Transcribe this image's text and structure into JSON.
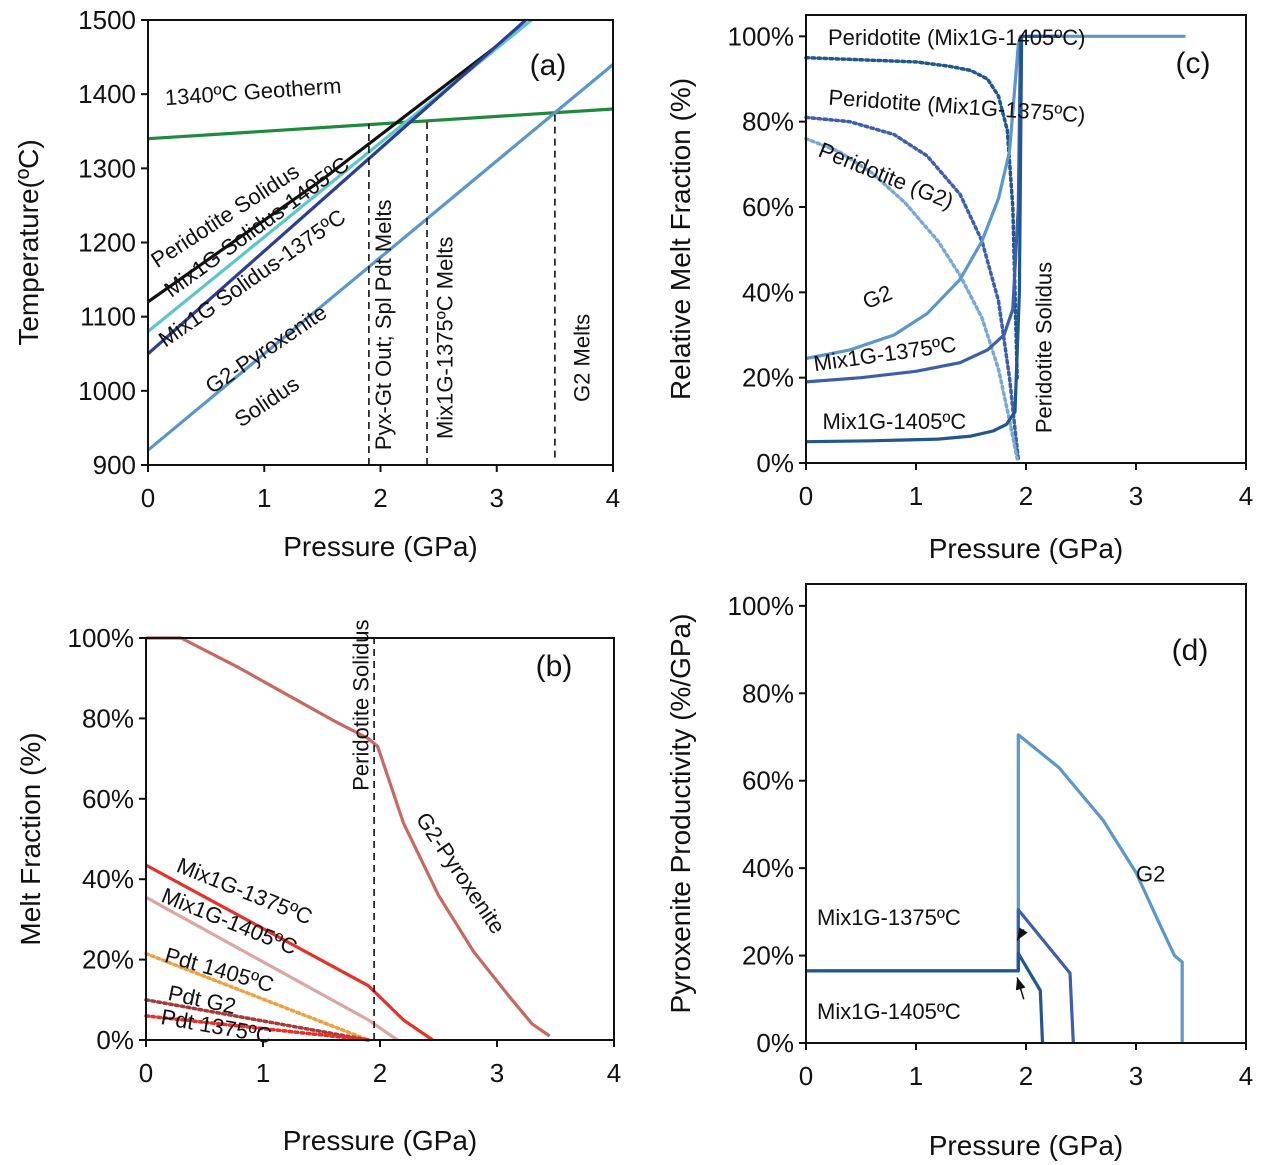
{
  "colors": {
    "black": "#111111",
    "green": "#1e8a3c",
    "cyan": "#5cc6c8",
    "navy": "#2d3e94",
    "light_blue": "#5b97cc",
    "dark_blue": "#20578f",
    "mid_blue": "#3b5fae",
    "dot_blue": "#7aa8d6",
    "brown_red": "#c8685e",
    "red": "#e8302a",
    "pink": "#dca6a2",
    "orange": "#eda23f",
    "dark_red": "#a83a35"
  },
  "chart_data": [
    {
      "id": "a",
      "type": "line",
      "panel_label": "(a)",
      "xlabel": "Pressure (GPa)",
      "ylabel": "Temperature(ºC)",
      "xlim": [
        0,
        4
      ],
      "ylim": [
        900,
        1500
      ],
      "xticks": [
        "0",
        "1",
        "2",
        "3",
        "4"
      ],
      "yticks": [
        "900",
        "1000",
        "1100",
        "1200",
        "1300",
        "1400",
        "1500"
      ],
      "tick_values_x": [
        0,
        1,
        2,
        3,
        4
      ],
      "tick_values_y": [
        900,
        1000,
        1100,
        1200,
        1300,
        1400,
        1500
      ],
      "series": [
        {
          "key": "geotherm",
          "color_key": "green",
          "dash": "solid",
          "x": [
            0,
            4
          ],
          "y": [
            1340,
            1380
          ]
        },
        {
          "key": "pdt_solidus",
          "color_key": "black",
          "dash": "solid",
          "x": [
            0,
            0.5,
            1,
            1.5,
            2,
            2.5,
            3,
            3.2
          ],
          "y": [
            1120,
            1175,
            1230,
            1285,
            1345,
            1405,
            1465,
            1490
          ]
        },
        {
          "key": "mix1405_solidus",
          "color_key": "cyan",
          "dash": "solid",
          "x": [
            0,
            3.3
          ],
          "y": [
            1080,
            1500
          ]
        },
        {
          "key": "mix1375_solidus",
          "color_key": "navy",
          "dash": "solid",
          "x": [
            0,
            3.25
          ],
          "y": [
            1050,
            1500
          ]
        },
        {
          "key": "g2_solidus",
          "color_key": "light_blue",
          "dash": "solid",
          "x": [
            0,
            4
          ],
          "y": [
            920,
            1440
          ]
        },
        {
          "key": "v1",
          "color_key": "black",
          "dash": "dashed",
          "x": [
            1.9,
            1.9
          ],
          "y": [
            900,
            1360
          ]
        },
        {
          "key": "v2",
          "color_key": "black",
          "dash": "dashed",
          "x": [
            2.4,
            2.4
          ],
          "y": [
            900,
            1365
          ]
        },
        {
          "key": "v3",
          "color_key": "black",
          "dash": "dashed",
          "x": [
            3.5,
            3.5
          ],
          "y": [
            910,
            1375
          ]
        }
      ],
      "annotations": [
        {
          "text": "1340ºC Geotherm",
          "x": 0.15,
          "y": 1385,
          "rot": -4
        },
        {
          "text": "Peridotite Solidus",
          "x": 0.08,
          "y": 1165,
          "rot": -33
        },
        {
          "text": "Mix1G Solidus-1405ºC",
          "x": 0.2,
          "y": 1125,
          "rot": -36
        },
        {
          "text": "Mix1G Solidus-1375ºC",
          "x": 0.15,
          "y": 1058,
          "rot": -35
        },
        {
          "text": "G2-Pyroxenite",
          "x": 0.55,
          "y": 995,
          "rot": -34
        },
        {
          "text": "Solidus",
          "x": 0.8,
          "y": 950,
          "rot": -34
        },
        {
          "text": "Pyx-Gt Out; Spl Pdt Melts",
          "x": 2.09,
          "y": 920,
          "rot": -90
        },
        {
          "text": "Mix1G-1375ºC Melts",
          "x": 2.62,
          "y": 935,
          "rot": -90
        },
        {
          "text": "G2 Melts",
          "x": 3.8,
          "y": 985,
          "rot": -90
        }
      ]
    },
    {
      "id": "b",
      "type": "line",
      "panel_label": "(b)",
      "xlabel": "Pressure (GPa)",
      "ylabel": "Melt Fraction (%)",
      "xlim": [
        0,
        4
      ],
      "ylim": [
        0,
        100
      ],
      "xticks": [
        "0",
        "1",
        "2",
        "3",
        "4"
      ],
      "yticks": [
        "0%",
        "20%",
        "40%",
        "60%",
        "80%",
        "100%"
      ],
      "tick_values_x": [
        0,
        1,
        2,
        3,
        4
      ],
      "tick_values_y": [
        0,
        20,
        40,
        60,
        80,
        100
      ],
      "series": [
        {
          "key": "g2_pyx",
          "color_key": "brown_red",
          "dash": "solid",
          "x": [
            0,
            0.3,
            0.8,
            1.2,
            1.6,
            1.9,
            1.98,
            2.2,
            2.5,
            2.8,
            3.1,
            3.3,
            3.45
          ],
          "y": [
            100,
            100,
            92.5,
            86,
            79.5,
            75,
            73,
            54,
            36,
            22,
            11,
            4,
            1
          ]
        },
        {
          "key": "mix1375",
          "color_key": "red",
          "dash": "solid",
          "x": [
            0,
            1.9,
            2.2,
            2.45
          ],
          "y": [
            43.5,
            13.5,
            5,
            0
          ]
        },
        {
          "key": "mix1405",
          "color_key": "pink",
          "dash": "solid",
          "x": [
            0,
            1.9,
            2.15
          ],
          "y": [
            35.5,
            5,
            0
          ]
        },
        {
          "key": "pdt1405",
          "color_key": "orange",
          "dash": "dotted",
          "x": [
            0,
            1.9
          ],
          "y": [
            21.5,
            0
          ]
        },
        {
          "key": "pdt_g2",
          "color_key": "dark_red",
          "dash": "dotted",
          "x": [
            0,
            1.9
          ],
          "y": [
            10,
            0
          ]
        },
        {
          "key": "pdt1375",
          "color_key": "red",
          "dash": "dotted",
          "x": [
            0,
            1.9
          ],
          "y": [
            6,
            0
          ]
        },
        {
          "key": "pdt_solidus_line",
          "color_key": "black",
          "dash": "dashed",
          "x": [
            1.95,
            1.95
          ],
          "y": [
            0,
            100
          ]
        }
      ],
      "annotations": [
        {
          "text": "Peridotite Solidus",
          "x": 1.9,
          "y": 62,
          "rot": -90
        },
        {
          "text": "G2-Pyroxenite",
          "x": 2.3,
          "y": 55,
          "rot": 56
        },
        {
          "text": "Mix1G-1375ºC",
          "x": 0.25,
          "y": 42,
          "rot": 22
        },
        {
          "text": "Mix1G-1405ºC",
          "x": 0.12,
          "y": 34.5,
          "rot": 22
        },
        {
          "text": "Pdt 1405ºC",
          "x": 0.15,
          "y": 19.5,
          "rot": 16
        },
        {
          "text": "Pdt G2",
          "x": 0.18,
          "y": 10,
          "rot": 12
        },
        {
          "text": "Pdt 1375ºC",
          "x": 0.12,
          "y": 4,
          "rot": 10
        }
      ]
    },
    {
      "id": "c",
      "type": "line",
      "panel_label": "(c)",
      "xlabel": "Pressure (GPa)",
      "ylabel": "Relative Melt Fraction (%)",
      "xlim": [
        0,
        4
      ],
      "ylim": [
        0,
        105
      ],
      "xticks": [
        "0",
        "1",
        "2",
        "3",
        "4"
      ],
      "yticks": [
        "0%",
        "20%",
        "40%",
        "60%",
        "80%",
        "100%"
      ],
      "tick_values_x": [
        0,
        1,
        2,
        3,
        4
      ],
      "tick_values_y": [
        0,
        20,
        40,
        60,
        80,
        100
      ],
      "series": [
        {
          "key": "pdt_m1405",
          "color_key": "dark_blue",
          "dash": "dotted",
          "x": [
            0,
            0.5,
            1.0,
            1.3,
            1.5,
            1.65,
            1.75,
            1.83,
            1.88,
            1.92
          ],
          "y": [
            95,
            94.5,
            94,
            93,
            92,
            90,
            86,
            78,
            60,
            20
          ]
        },
        {
          "key": "pdt_m1375",
          "color_key": "mid_blue",
          "dash": "dotted",
          "x": [
            0,
            0.4,
            0.8,
            1.1,
            1.4,
            1.6,
            1.75,
            1.85,
            1.9,
            1.93
          ],
          "y": [
            81,
            80,
            77,
            72,
            63,
            52,
            38,
            20,
            8,
            1
          ]
        },
        {
          "key": "pdt_g2",
          "color_key": "dot_blue",
          "dash": "dotted",
          "x": [
            0,
            0.3,
            0.6,
            0.9,
            1.2,
            1.4,
            1.6,
            1.75,
            1.85,
            1.92
          ],
          "y": [
            76,
            73,
            68,
            61,
            52,
            44,
            34,
            22,
            10,
            1
          ]
        },
        {
          "key": "g2",
          "color_key": "light_blue",
          "dash": "solid",
          "x": [
            0,
            0.4,
            0.8,
            1.1,
            1.4,
            1.6,
            1.75,
            1.85,
            1.93,
            1.95,
            2.5,
            3.45
          ],
          "y": [
            24.5,
            26.5,
            30,
            35,
            43,
            52,
            62,
            73,
            98,
            100,
            100,
            100
          ]
        },
        {
          "key": "m1375",
          "color_key": "mid_blue",
          "dash": "solid",
          "x": [
            0,
            0.5,
            1.0,
            1.4,
            1.65,
            1.8,
            1.88,
            1.93,
            1.95
          ],
          "y": [
            19,
            20,
            21.5,
            23.5,
            26.5,
            30,
            36,
            60,
            100
          ]
        },
        {
          "key": "m1405",
          "color_key": "dark_blue",
          "dash": "solid",
          "x": [
            0,
            0.6,
            1.2,
            1.5,
            1.7,
            1.82,
            1.9,
            1.94,
            1.96
          ],
          "y": [
            5,
            5.2,
            5.6,
            6.3,
            7.5,
            9,
            12,
            40,
            100
          ]
        },
        {
          "key": "steps",
          "color_key": "dark_blue",
          "dash": "solid",
          "x": [
            1.95,
            2.3
          ],
          "y": [
            100,
            100
          ]
        }
      ],
      "annotations": [
        {
          "text": "Peridotite (Mix1G-1405ºC)",
          "x": 0.2,
          "y": 98,
          "rot": 0
        },
        {
          "text": "Peridotite (Mix1G-1375ºC)",
          "x": 0.2,
          "y": 84,
          "rot": 4
        },
        {
          "text": "Peridotite (G2)",
          "x": 0.1,
          "y": 72,
          "rot": 22
        },
        {
          "text": "G2",
          "x": 0.55,
          "y": 36,
          "rot": -22
        },
        {
          "text": "Mix1G-1375ºC",
          "x": 0.08,
          "y": 21.5,
          "rot": -8
        },
        {
          "text": "Mix1G-1405ºC",
          "x": 0.15,
          "y": 8,
          "rot": 0
        },
        {
          "text": "Peridotite Solidus",
          "x": 2.23,
          "y": 7,
          "rot": -90
        }
      ]
    },
    {
      "id": "d",
      "type": "line",
      "panel_label": "(d)",
      "xlabel": "Pressure (GPa)",
      "ylabel": "Pyroxenite Productivity (%/GPa)",
      "xlim": [
        0,
        4
      ],
      "ylim": [
        0,
        105
      ],
      "xticks": [
        "0",
        "1",
        "2",
        "3",
        "4"
      ],
      "yticks": [
        "0%",
        "20%",
        "40%",
        "60%",
        "80%",
        "100%"
      ],
      "tick_values_x": [
        0,
        1,
        2,
        3,
        4
      ],
      "tick_values_y": [
        0,
        20,
        40,
        60,
        80,
        100
      ],
      "series": [
        {
          "key": "g2",
          "color_key": "light_blue",
          "dash": "solid",
          "x": [
            0,
            1.93,
            1.93,
            2.3,
            2.7,
            3.0,
            3.2,
            3.35,
            3.42,
            3.42
          ],
          "y": [
            16.5,
            16.5,
            70.5,
            63,
            51,
            39,
            28,
            20,
            18.5,
            0
          ]
        },
        {
          "key": "m1375",
          "color_key": "mid_blue",
          "dash": "solid",
          "x": [
            1.93,
            1.93,
            2.4,
            2.43
          ],
          "y": [
            16.5,
            30.5,
            16,
            0
          ]
        },
        {
          "key": "m1405",
          "color_key": "dark_blue",
          "dash": "solid",
          "x": [
            0,
            1.93,
            1.93,
            2.13,
            2.15
          ],
          "y": [
            16.5,
            16.5,
            20.5,
            12,
            0
          ]
        }
      ],
      "annotations": [
        {
          "text": "G2",
          "x": 3.0,
          "y": 37,
          "rot": 0
        },
        {
          "text": "Mix1G-1375ºC",
          "x": 0.1,
          "y": 27,
          "rot": 0
        },
        {
          "text": "Mix1G-1405ºC",
          "x": 0.1,
          "y": 5.5,
          "rot": 0
        }
      ]
    }
  ]
}
